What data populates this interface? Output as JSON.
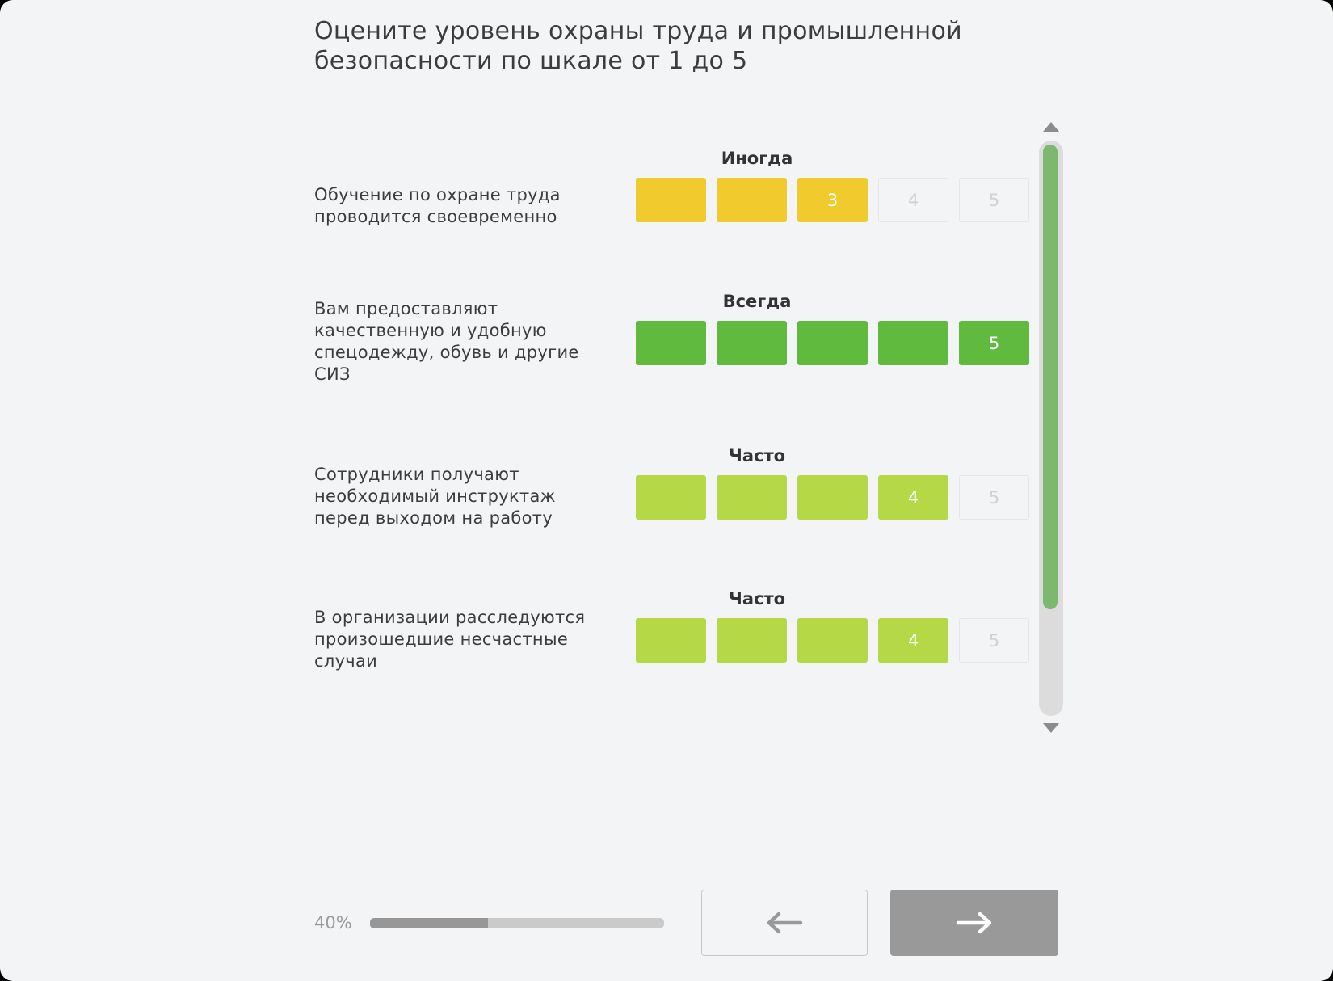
{
  "title": "Оцените уровень охраны труда и промышленной безопасности по шкале от 1 до 5",
  "colors": {
    "yellow": "#f1ca2e",
    "green": "#5fba3d",
    "lime": "#b4d846",
    "off_bg": "#f3f4f6",
    "scroll_thumb": "#7cb86e"
  },
  "questions": [
    {
      "text": "Обучение по охране труда проводится своевременно",
      "verdict": "Иногда",
      "value": 3,
      "color": "#f1ca2e",
      "cells": [
        "",
        "",
        "3",
        "4",
        "5"
      ]
    },
    {
      "text": "Вам предоставляют качественную и удобную спецодежду, обувь и другие СИЗ",
      "verdict": "Всегда",
      "value": 5,
      "color": "#5fba3d",
      "cells": [
        "",
        "",
        "",
        "",
        "5"
      ]
    },
    {
      "text": "Сотрудники получают необходимый инструктаж перед выходом на работу",
      "verdict": "Часто",
      "value": 4,
      "color": "#b4d846",
      "cells": [
        "",
        "",
        "",
        "4",
        "5"
      ]
    },
    {
      "text": "В организации расследуются произошедшие несчастные случаи",
      "verdict": "Часто",
      "value": 4,
      "color": "#b4d846",
      "cells": [
        "",
        "",
        "",
        "4",
        "5"
      ]
    }
  ],
  "progress": {
    "label": "40%",
    "percent": 40
  },
  "nav": {
    "back_icon": "arrow-left",
    "next_icon": "arrow-right"
  }
}
